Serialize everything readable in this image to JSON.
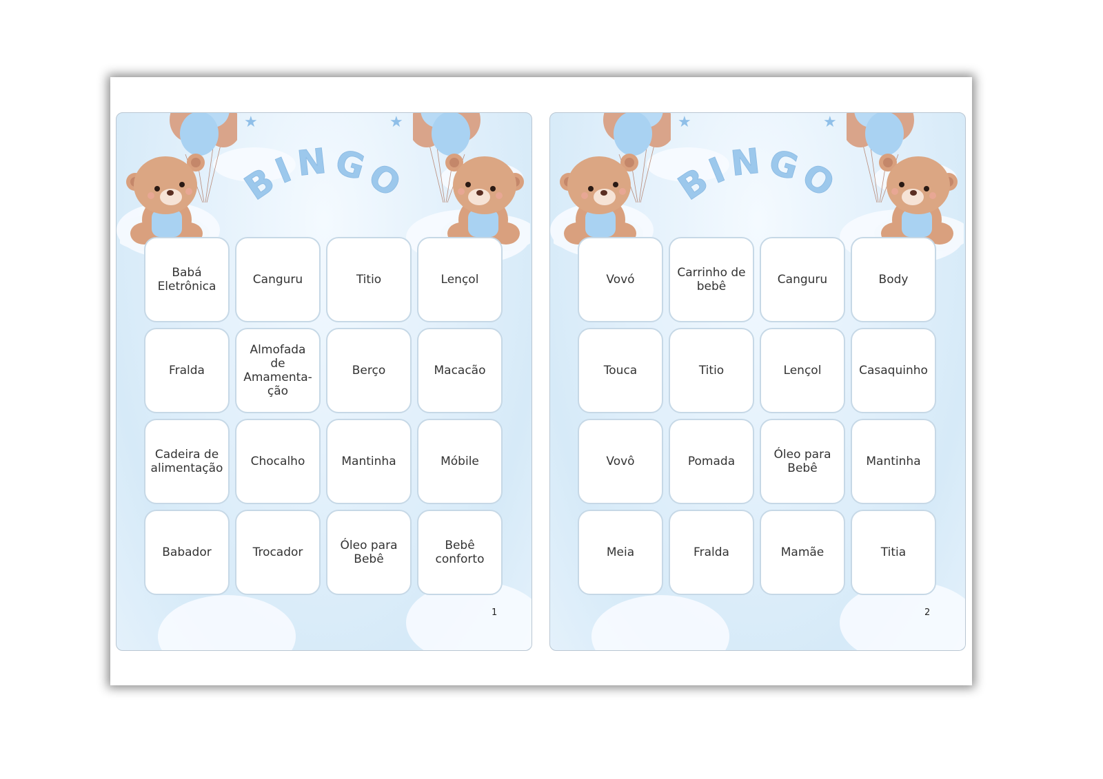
{
  "cards": [
    {
      "title": "BINGO",
      "page_number": "1",
      "cells": [
        "Babá\nEletrônica",
        "Canguru",
        "Titio",
        "Lençol",
        "Fralda",
        "Almofada de\nAmamenta-\nção",
        "Berço",
        "Macacão",
        "Cadeira de\nalimentação",
        "Chocalho",
        "Mantinha",
        "Móbile",
        "Babador",
        "Trocador",
        "Óleo para\nBebê",
        "Bebê\nconforto"
      ]
    },
    {
      "title": "BINGO",
      "page_number": "2",
      "cells": [
        "Vovó",
        "Carrinho de\nbebê",
        "Canguru",
        "Body",
        "Touca",
        "Titio",
        "Lençol",
        "Casaquinho",
        "Vovô",
        "Pomada",
        "Óleo para\nBebê",
        "Mantinha",
        "Meia",
        "Fralda",
        "Mamãe",
        "Titia"
      ]
    }
  ],
  "colors": {
    "title": "#9cc8ec",
    "cell_border": "#c6d8e6",
    "background": "#dcedf9",
    "bear": "#d9a07e",
    "balloon_blue": "#a9d2f2",
    "balloon_brown": "#d9a48a"
  }
}
